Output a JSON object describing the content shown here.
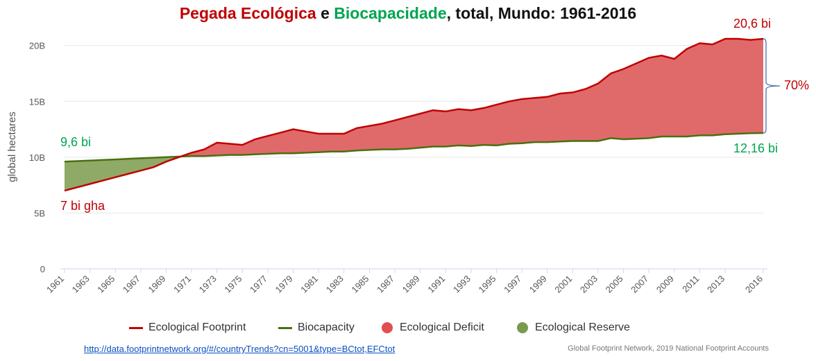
{
  "title": {
    "part1": "Pegada Ecológica",
    "part2": " e ",
    "part3": "Biocapacidade",
    "part4": ", total, Mundo: 1961-2016"
  },
  "colors": {
    "footprint_line": "#c00000",
    "biocapacity_line": "#4a6f10",
    "deficit_fill": "#e06a6a",
    "reserve_fill": "#8faa66",
    "title_red": "#c00000",
    "title_green": "#00a550",
    "annotation_red": "#c00000",
    "annotation_green": "#00a550"
  },
  "chart_data": {
    "type": "area",
    "ylabel": "global hectares",
    "xlabel": "",
    "ylim": [
      0,
      20600000000
    ],
    "yticks": [
      {
        "value": 0,
        "label": "0"
      },
      {
        "value": 5000000000,
        "label": "5B"
      },
      {
        "value": 10000000000,
        "label": "10B"
      },
      {
        "value": 15000000000,
        "label": "15B"
      },
      {
        "value": 20000000000,
        "label": "20B"
      }
    ],
    "xticks": [
      "1961",
      "1963",
      "1965",
      "1967",
      "1969",
      "1971",
      "1973",
      "1975",
      "1977",
      "1979",
      "1981",
      "1983",
      "1985",
      "1987",
      "1989",
      "1991",
      "1993",
      "1995",
      "1997",
      "1999",
      "2001",
      "2003",
      "2005",
      "2007",
      "2009",
      "2011",
      "2013",
      "2016"
    ],
    "grid": true,
    "legend_position": "bottom",
    "x": [
      1961,
      1962,
      1963,
      1964,
      1965,
      1966,
      1967,
      1968,
      1969,
      1970,
      1971,
      1972,
      1973,
      1974,
      1975,
      1976,
      1977,
      1978,
      1979,
      1980,
      1981,
      1982,
      1983,
      1984,
      1985,
      1986,
      1987,
      1988,
      1989,
      1990,
      1991,
      1992,
      1993,
      1994,
      1995,
      1996,
      1997,
      1998,
      1999,
      2000,
      2001,
      2002,
      2003,
      2004,
      2005,
      2006,
      2007,
      2008,
      2009,
      2010,
      2011,
      2012,
      2013,
      2014,
      2015,
      2016
    ],
    "series": [
      {
        "name": "Ecological Footprint",
        "values": [
          7.0,
          7.3,
          7.6,
          7.9,
          8.2,
          8.5,
          8.8,
          9.1,
          9.6,
          10.0,
          10.4,
          10.7,
          11.3,
          11.2,
          11.1,
          11.6,
          11.9,
          12.2,
          12.5,
          12.3,
          12.1,
          12.1,
          12.1,
          12.6,
          12.8,
          13.0,
          13.3,
          13.6,
          13.9,
          14.2,
          14.1,
          14.3,
          14.2,
          14.4,
          14.7,
          15.0,
          15.2,
          15.3,
          15.4,
          15.7,
          15.8,
          16.1,
          16.6,
          17.5,
          17.9,
          18.4,
          18.9,
          19.1,
          18.8,
          19.7,
          20.2,
          20.1,
          20.6,
          20.6,
          20.5,
          20.6
        ],
        "unit_scale": 1000000000
      },
      {
        "name": "Biocapacity",
        "values": [
          9.6,
          9.65,
          9.7,
          9.75,
          9.8,
          9.85,
          9.9,
          9.95,
          10.0,
          10.05,
          10.1,
          10.1,
          10.15,
          10.2,
          10.2,
          10.25,
          10.3,
          10.35,
          10.35,
          10.4,
          10.45,
          10.5,
          10.5,
          10.6,
          10.65,
          10.7,
          10.7,
          10.75,
          10.85,
          10.95,
          10.95,
          11.05,
          11.0,
          11.1,
          11.05,
          11.2,
          11.25,
          11.35,
          11.35,
          11.4,
          11.45,
          11.45,
          11.45,
          11.7,
          11.6,
          11.65,
          11.7,
          11.85,
          11.85,
          11.85,
          11.95,
          11.95,
          12.05,
          12.1,
          12.15,
          12.16
        ],
        "unit_scale": 1000000000
      }
    ],
    "annotations": {
      "footprint_start": "7 bi gha",
      "footprint_end": "20,6 bi",
      "biocapacity_start": "9,6 bi",
      "biocapacity_end": "12,16 bi",
      "overshoot": "70%"
    }
  },
  "legend": [
    {
      "label": "Ecological Footprint",
      "kind": "line",
      "color": "#c00000"
    },
    {
      "label": "Biocapacity",
      "kind": "line",
      "color": "#4a6f10"
    },
    {
      "label": "Ecological Deficit",
      "kind": "dot",
      "color": "#e05050"
    },
    {
      "label": "Ecological Reserve",
      "kind": "dot",
      "color": "#7a9a50"
    }
  ],
  "footer": {
    "source_link": "http://data.footprintnetwork.org/#/countryTrends?cn=5001&type=BCtot,EFCtot",
    "credits": "Global Footprint Network, 2019 National Footprint Accounts"
  }
}
